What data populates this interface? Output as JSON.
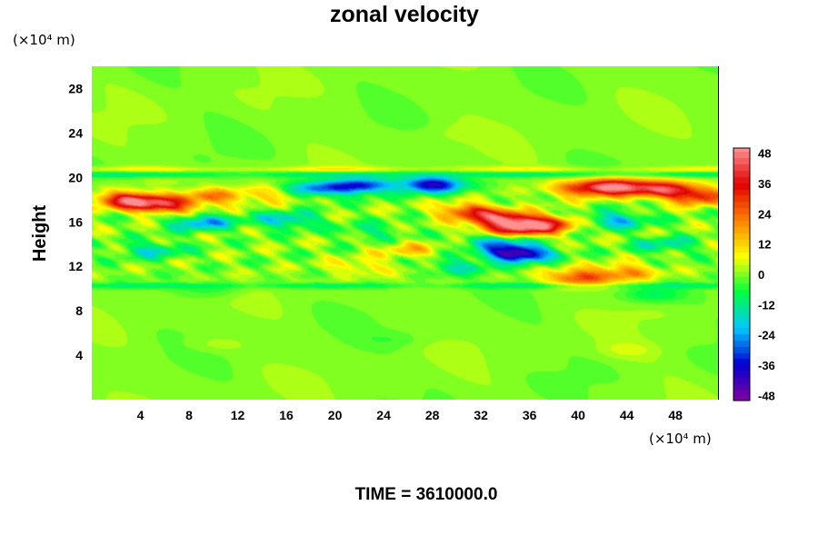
{
  "chart_data": {
    "type": "heatmap",
    "title": "zonal velocity",
    "ylabel": "Height",
    "xlabel": "",
    "x_unit": "(×10⁴ m)",
    "y_unit": "(×10⁴ m)",
    "xlim": [
      0,
      51.5
    ],
    "ylim": [
      0,
      30
    ],
    "x_ticks": [
      4,
      8,
      12,
      16,
      20,
      24,
      28,
      32,
      36,
      40,
      44,
      48
    ],
    "y_ticks": [
      4,
      8,
      12,
      16,
      20,
      24,
      28
    ],
    "value_range": [
      -50,
      50
    ],
    "colorbar": {
      "ticks": [
        48,
        36,
        24,
        12,
        0,
        -12,
        -24,
        -36,
        -48
      ],
      "min": -50,
      "max": 50,
      "placement": "right"
    },
    "colormap": [
      "#8000a0",
      "#0000d0",
      "#00c8ff",
      "#00ff40",
      "#ffff00",
      "#ff8000",
      "#e00000",
      "#ff9090"
    ],
    "features": [
      {
        "x": 3,
        "y": 18.0,
        "value": 42
      },
      {
        "x": 6,
        "y": 17.5,
        "value": 34
      },
      {
        "x": 10,
        "y": 18.3,
        "value": 20
      },
      {
        "x": 15,
        "y": 18.6,
        "value": 14
      },
      {
        "x": 43,
        "y": 19.2,
        "value": 46
      },
      {
        "x": 47,
        "y": 19.0,
        "value": 36
      },
      {
        "x": 40,
        "y": 19.0,
        "value": 22
      },
      {
        "x": 50,
        "y": 18.3,
        "value": 30
      },
      {
        "x": 31,
        "y": 17.0,
        "value": 30
      },
      {
        "x": 34,
        "y": 16.2,
        "value": 40
      },
      {
        "x": 36,
        "y": 15.5,
        "value": 34
      },
      {
        "x": 38,
        "y": 16.0,
        "value": 18
      },
      {
        "x": 33,
        "y": 15.0,
        "value": 22
      },
      {
        "x": 40,
        "y": 11.0,
        "value": 28
      },
      {
        "x": 44,
        "y": 11.5,
        "value": 20
      },
      {
        "x": 26,
        "y": 13.5,
        "value": 12
      },
      {
        "x": 22,
        "y": 12.0,
        "value": 10
      },
      {
        "x": 22,
        "y": 19.3,
        "value": -36
      },
      {
        "x": 28,
        "y": 19.4,
        "value": -38
      },
      {
        "x": 18,
        "y": 19.0,
        "value": -26
      },
      {
        "x": 35,
        "y": 13.2,
        "value": -50
      },
      {
        "x": 33,
        "y": 14.5,
        "value": -30
      },
      {
        "x": 9,
        "y": 16.0,
        "value": -24
      },
      {
        "x": 16,
        "y": 16.2,
        "value": -20
      },
      {
        "x": 5,
        "y": 13.5,
        "value": -16
      },
      {
        "x": 43,
        "y": 16.2,
        "value": -22
      },
      {
        "x": 47,
        "y": 14.0,
        "value": -14
      },
      {
        "x": 23,
        "y": 15.2,
        "value": -10
      },
      {
        "x": 46,
        "y": 9.5,
        "value": -10
      },
      {
        "x": 10,
        "y": 10.0,
        "value": -6
      },
      {
        "x": 30,
        "y": 12.0,
        "value": -14
      },
      {
        "x": 44,
        "y": 4.5,
        "value": 4
      },
      {
        "x": 10,
        "y": 5.0,
        "value": 3
      },
      {
        "x": 25,
        "y": 5.5,
        "value": -3
      },
      {
        "x": 30,
        "y": 24.0,
        "value": 2
      }
    ],
    "bands": [
      {
        "y": 20.8,
        "value": 8
      },
      {
        "y": 20.3,
        "value": -12
      },
      {
        "y": 10.3,
        "value": -10
      }
    ]
  },
  "footer": {
    "time_label": "TIME = 3610000.0"
  }
}
